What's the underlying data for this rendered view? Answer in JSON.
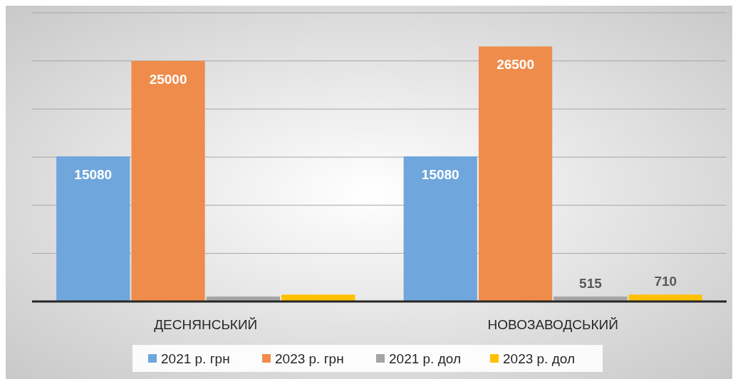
{
  "chart_data": {
    "type": "bar",
    "categories": [
      "ДЕСНЯНСЬКИЙ",
      "НОВОЗАВОДСЬКИЙ"
    ],
    "series": [
      {
        "name": "2021 р. грн",
        "color": "#6fa6db",
        "values": [
          15080,
          15080
        ],
        "value_labels": [
          "15080",
          "15080"
        ]
      },
      {
        "name": "2023 р. грн",
        "color": "#ef8c4b",
        "values": [
          25000,
          26500
        ],
        "value_labels": [
          "25000",
          "26500"
        ]
      },
      {
        "name": "2021 р. дол",
        "color": "#a5a5a5",
        "values": [
          515,
          515
        ],
        "value_labels": [
          null,
          "515"
        ]
      },
      {
        "name": "2023 р. дол",
        "color": "#ffc000",
        "values": [
          710,
          710
        ],
        "value_labels": [
          null,
          "710"
        ]
      }
    ],
    "ylim": [
      0,
      30000
    ],
    "yticks": [
      {
        "value": 0,
        "label": null
      },
      {
        "value": 5000,
        "label": null
      },
      {
        "value": 10000,
        "label": null
      },
      {
        "value": 15000,
        "label": null
      },
      {
        "value": 20000,
        "label": null
      },
      {
        "value": 25000,
        "label": null
      },
      {
        "value": 30000,
        "label": null
      }
    ],
    "tick_labels": "x",
    "grid": "y",
    "legend": "bottom"
  }
}
